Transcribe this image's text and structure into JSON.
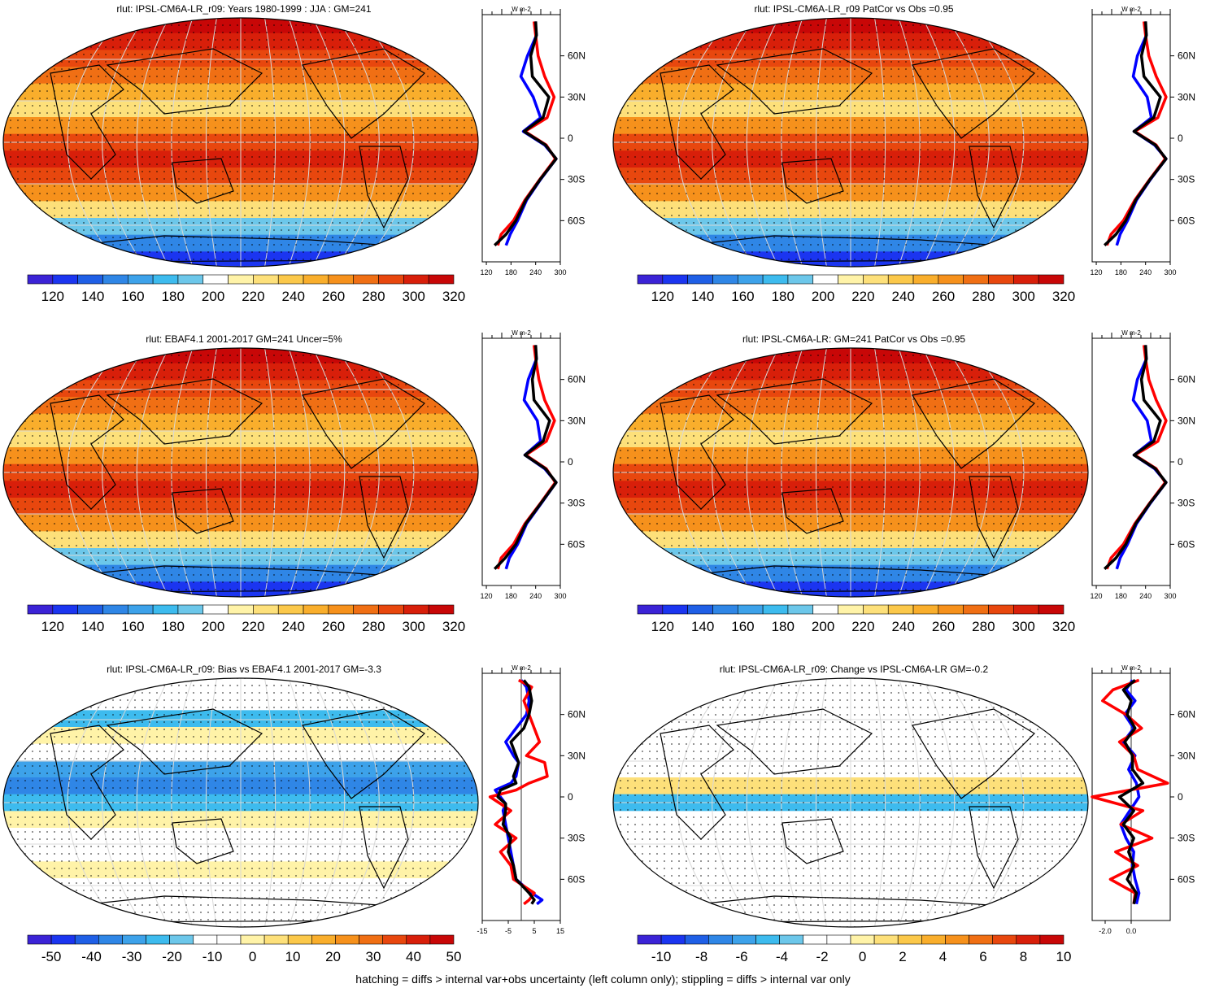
{
  "footer": "hatching = diffs > internal var+obs uncertainty (left column only); stippling = diffs > internal var only",
  "palettes": {
    "abs": [
      "#3b23d6",
      "#1b35f0",
      "#1f5fe6",
      "#2f86e6",
      "#3da2ea",
      "#3dbbee",
      "#6cc7ea",
      "#ffffff",
      "#fff3a8",
      "#fde07a",
      "#fbc84a",
      "#f9ae2c",
      "#f6911c",
      "#f06f14",
      "#e8470e",
      "#d81f0a",
      "#c80707"
    ],
    "bias": [
      "#3b23d6",
      "#1b35f0",
      "#1f5fe6",
      "#2f86e6",
      "#3da2ea",
      "#3dbbee",
      "#6cc7ea",
      "#ffffff",
      "#ffffff",
      "#fff3a8",
      "#fde07a",
      "#fbc84a",
      "#f9ae2c",
      "#f6911c",
      "#f06f14",
      "#e8470e",
      "#d81f0a",
      "#c80707"
    ]
  },
  "panels": [
    {
      "title": "rlut: IPSL-CM6A-LR_r09: Years 1980-1999 : JJA : GM=241",
      "palette": "abs",
      "colorbar_labels": [
        "120",
        "140",
        "160",
        "180",
        "200",
        "220",
        "240",
        "260",
        "280",
        "300",
        "320"
      ],
      "profile": {
        "unit": "W m-2",
        "xticks": [
          "120",
          "180",
          "240",
          "300"
        ],
        "xlim": [
          110,
          300
        ],
        "lat_labels": [
          "60N",
          "30N",
          "0",
          "30S",
          "60S"
        ],
        "series": [
          {
            "color": "#0000ff",
            "lat": [
              85,
              75,
              60,
              45,
              30,
              15,
              5,
              -5,
              -15,
              -30,
              -45,
              -60,
              -70,
              -78
            ],
            "values": [
              238,
              242,
              220,
              204,
              234,
              252,
              210,
              262,
              290,
              252,
              218,
              196,
              178,
              168
            ]
          },
          {
            "color": "#ff0000",
            "lat": [
              85,
              75,
              60,
              45,
              30,
              15,
              5,
              -5,
              -15,
              -30,
              -45,
              -60,
              -70,
              -78
            ],
            "values": [
              236,
              240,
              246,
              262,
              285,
              268,
              214,
              266,
              288,
              250,
              214,
              186,
              156,
              148
            ]
          },
          {
            "color": "#000000",
            "lat": [
              85,
              75,
              60,
              45,
              30,
              15,
              5,
              -5,
              -15,
              -30,
              -45,
              -60,
              -70,
              -78
            ],
            "values": [
              240,
              242,
              228,
              232,
              272,
              258,
              212,
              264,
              290,
              251,
              216,
              192,
              168,
              140
            ]
          }
        ]
      }
    },
    {
      "title": "rlut: IPSL-CM6A-LR_r09 PatCor vs Obs =0.95",
      "palette": "abs",
      "colorbar_labels": [
        "120",
        "140",
        "160",
        "180",
        "200",
        "220",
        "240",
        "260",
        "280",
        "300",
        "320"
      ],
      "profile": {
        "unit": "W m-2",
        "xticks": [
          "120",
          "180",
          "240",
          "300"
        ],
        "xlim": [
          110,
          300
        ],
        "lat_labels": [
          "60N",
          "30N",
          "0",
          "30S",
          "60S"
        ],
        "series": [
          {
            "color": "#0000ff",
            "lat": [
              85,
              75,
              60,
              45,
              30,
              15,
              5,
              -5,
              -15,
              -30,
              -45,
              -60,
              -70,
              -78
            ],
            "values": [
              238,
              242,
              220,
              210,
              244,
              254,
              212,
              262,
              290,
              252,
              218,
              196,
              178,
              170
            ]
          },
          {
            "color": "#ff0000",
            "lat": [
              85,
              75,
              60,
              45,
              30,
              15,
              5,
              -5,
              -15,
              -30,
              -45,
              -60,
              -70,
              -78
            ],
            "values": [
              236,
              240,
              248,
              266,
              290,
              270,
              214,
              266,
              288,
              250,
              214,
              186,
              156,
              146
            ]
          },
          {
            "color": "#000000",
            "lat": [
              85,
              75,
              60,
              45,
              30,
              15,
              5,
              -5,
              -15,
              -30,
              -45,
              -60,
              -70,
              -78
            ],
            "values": [
              240,
              242,
              230,
              236,
              276,
              260,
              212,
              264,
              290,
              251,
              216,
              192,
              168,
              140
            ]
          }
        ]
      }
    },
    {
      "title": "rlut: EBAF4.1 2001-2017 GM=241 Uncer=5%",
      "palette": "abs",
      "colorbar_labels": [
        "120",
        "140",
        "160",
        "180",
        "200",
        "220",
        "240",
        "260",
        "280",
        "300",
        "320"
      ],
      "profile": {
        "unit": "W m-2",
        "xticks": [
          "120",
          "180",
          "240",
          "300"
        ],
        "xlim": [
          110,
          300
        ],
        "lat_labels": [
          "60N",
          "30N",
          "0",
          "30S",
          "60S"
        ],
        "series": [
          {
            "color": "#0000ff",
            "lat": [
              85,
              75,
              60,
              45,
              30,
              15,
              5,
              -5,
              -15,
              -30,
              -45,
              -60,
              -70,
              -78
            ],
            "values": [
              238,
              242,
              222,
              212,
              244,
              252,
              214,
              262,
              290,
              254,
              218,
              196,
              176,
              168
            ]
          },
          {
            "color": "#ff0000",
            "lat": [
              85,
              75,
              60,
              45,
              30,
              15,
              5,
              -5,
              -15,
              -30,
              -45,
              -60,
              -70,
              -78
            ],
            "values": [
              236,
              240,
              248,
              262,
              286,
              266,
              216,
              266,
              288,
              252,
              214,
              186,
              156,
              148
            ]
          },
          {
            "color": "#000000",
            "lat": [
              85,
              75,
              60,
              45,
              30,
              15,
              5,
              -5,
              -15,
              -30,
              -45,
              -60,
              -70,
              -78
            ],
            "values": [
              240,
              242,
              232,
              236,
              274,
              258,
              214,
              264,
              290,
              253,
              216,
              192,
              166,
              140
            ]
          }
        ]
      }
    },
    {
      "title": "rlut: IPSL-CM6A-LR: GM=241 PatCor vs Obs =0.95",
      "palette": "abs",
      "colorbar_labels": [
        "120",
        "140",
        "160",
        "180",
        "200",
        "220",
        "240",
        "260",
        "280",
        "300",
        "320"
      ],
      "profile": {
        "unit": "W m-2",
        "xticks": [
          "120",
          "180",
          "240",
          "300"
        ],
        "xlim": [
          110,
          300
        ],
        "lat_labels": [
          "60N",
          "30N",
          "0",
          "30S",
          "60S"
        ],
        "series": [
          {
            "color": "#0000ff",
            "lat": [
              85,
              75,
              60,
              45,
              30,
              15,
              5,
              -5,
              -15,
              -30,
              -45,
              -60,
              -70,
              -78
            ],
            "values": [
              238,
              242,
              220,
              210,
              244,
              254,
              212,
              262,
              290,
              252,
              218,
              196,
              178,
              170
            ]
          },
          {
            "color": "#ff0000",
            "lat": [
              85,
              75,
              60,
              45,
              30,
              15,
              5,
              -5,
              -15,
              -30,
              -45,
              -60,
              -70,
              -78
            ],
            "values": [
              236,
              240,
              248,
              266,
              290,
              270,
              214,
              266,
              288,
              250,
              214,
              186,
              156,
              146
            ]
          },
          {
            "color": "#000000",
            "lat": [
              85,
              75,
              60,
              45,
              30,
              15,
              5,
              -5,
              -15,
              -30,
              -45,
              -60,
              -70,
              -78
            ],
            "values": [
              240,
              242,
              230,
              236,
              276,
              260,
              212,
              264,
              290,
              251,
              216,
              192,
              168,
              140
            ]
          }
        ]
      }
    },
    {
      "title": "rlut: IPSL-CM6A-LR_r09: Bias vs EBAF4.1 2001-2017 GM=-3.3",
      "palette": "bias",
      "colorbar_labels": [
        "-50",
        "-40",
        "-30",
        "-20",
        "-10",
        "0",
        "10",
        "20",
        "30",
        "40",
        "50"
      ],
      "profile": {
        "unit": "W m-2",
        "xticks": [
          "-15",
          "-5",
          "5",
          "15"
        ],
        "xlim": [
          -15,
          15
        ],
        "zero_line": 0,
        "lat_labels": [
          "60N",
          "30N",
          "0",
          "30S",
          "60S"
        ],
        "series": [
          {
            "color": "#0000ff",
            "lat": [
              85,
              80,
              70,
              60,
              50,
              40,
              30,
              25,
              15,
              10,
              5,
              0,
              -5,
              -10,
              -20,
              -30,
              -40,
              -50,
              -60,
              -70,
              -75,
              -78
            ],
            "values": [
              0,
              2,
              3,
              2,
              -2,
              -6,
              -3,
              -1,
              -2,
              -4,
              -10,
              -8,
              -6,
              -7,
              -6,
              -5,
              -4,
              -3,
              -2,
              4,
              8,
              6
            ]
          },
          {
            "color": "#ff0000",
            "lat": [
              85,
              80,
              70,
              60,
              50,
              40,
              30,
              25,
              15,
              10,
              5,
              0,
              -5,
              -10,
              -20,
              -30,
              -40,
              -50,
              -60,
              -70,
              -75,
              -78
            ],
            "values": [
              -1,
              4,
              1,
              3,
              5,
              7,
              2,
              9,
              10,
              3,
              -2,
              -12,
              -8,
              -4,
              -10,
              -2,
              -8,
              -4,
              -3,
              5,
              3,
              1
            ]
          },
          {
            "color": "#000000",
            "lat": [
              85,
              80,
              70,
              60,
              50,
              40,
              30,
              25,
              15,
              10,
              5,
              0,
              -5,
              -10,
              -20,
              -30,
              -40,
              -50,
              -60,
              -70,
              -75,
              -78
            ],
            "values": [
              1,
              3,
              4,
              3,
              1,
              -4,
              -2,
              -1,
              -3,
              -2,
              -8,
              -9,
              -6,
              -6,
              -7,
              -4,
              -5,
              -3,
              -2,
              3,
              5,
              4
            ]
          }
        ]
      }
    },
    {
      "title": "rlut: IPSL-CM6A-LR_r09: Change vs IPSL-CM6A-LR GM=-0.2",
      "palette": "bias",
      "colorbar_labels": [
        "-10",
        "-8",
        "-6",
        "-4",
        "-2",
        "0",
        "2",
        "4",
        "6",
        "8",
        "10"
      ],
      "profile": {
        "unit": "W m-2",
        "xticks": [
          "-2.0",
          "0.0"
        ],
        "xlim": [
          -3.0,
          3.0
        ],
        "tick_values": [
          -2.0,
          0.0
        ],
        "zero_line": 0,
        "lat_labels": [
          "60N",
          "30N",
          "0",
          "30S",
          "60S"
        ],
        "series": [
          {
            "color": "#0000ff",
            "lat": [
              85,
              78,
              70,
              60,
              50,
              40,
              30,
              20,
              10,
              0,
              -10,
              -20,
              -30,
              -40,
              -50,
              -60,
              -70,
              -78
            ],
            "values": [
              0.1,
              -0.4,
              0.3,
              -0.5,
              0.2,
              -0.6,
              0.3,
              -0.2,
              0.4,
              0.6,
              -0.1,
              -0.8,
              -0.4,
              0.2,
              0.1,
              0.3,
              0.6,
              0.4
            ]
          },
          {
            "color": "#ff0000",
            "lat": [
              85,
              78,
              70,
              60,
              50,
              40,
              30,
              20,
              10,
              0,
              -10,
              -20,
              -30,
              -40,
              -50,
              -60,
              -70,
              -78
            ],
            "values": [
              0.6,
              -1.4,
              -2.2,
              -0.4,
              0.8,
              -0.9,
              0.2,
              0.5,
              2.8,
              -3.0,
              0.9,
              -0.8,
              1.6,
              -1.2,
              0.5,
              -1.6,
              0.3,
              0.2
            ]
          },
          {
            "color": "#000000",
            "lat": [
              85,
              78,
              70,
              60,
              50,
              40,
              30,
              20,
              10,
              0,
              -10,
              -20,
              -30,
              -40,
              -50,
              -60,
              -70,
              -78
            ],
            "values": [
              0.3,
              -0.6,
              0.0,
              -0.3,
              0.3,
              -0.5,
              0.1,
              0.1,
              0.9,
              -0.9,
              0.2,
              -0.6,
              0.2,
              -0.2,
              0.2,
              -0.3,
              0.4,
              0.2
            ]
          }
        ]
      }
    }
  ]
}
